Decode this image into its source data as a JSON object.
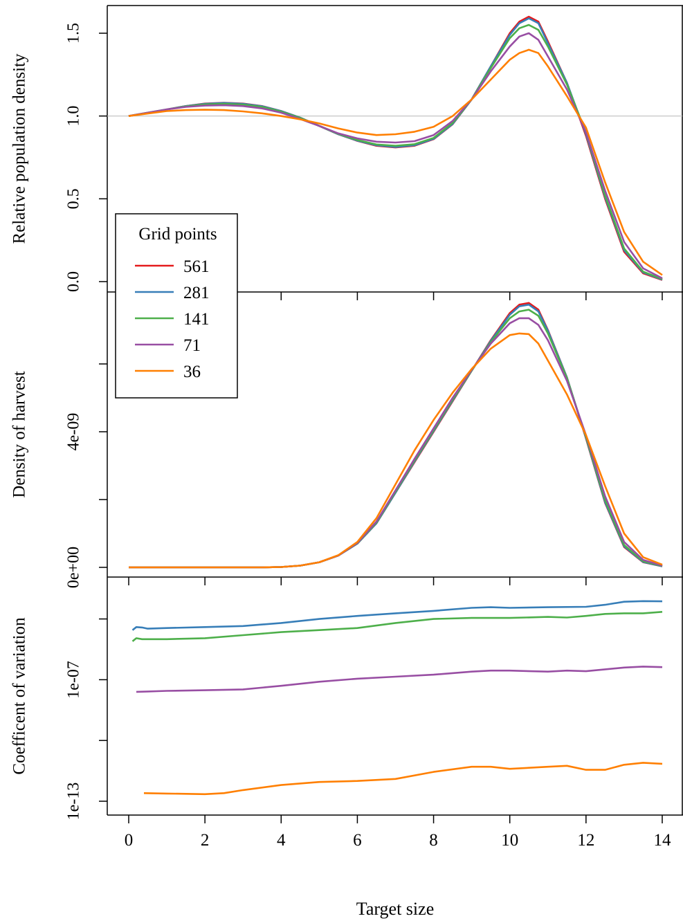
{
  "colors": {
    "561": "#e41a1c",
    "281": "#377eb8",
    "141": "#4daf4a",
    "71": "#984ea3",
    "36": "#ff7f00",
    "reference_line": "#bebebe",
    "axis": "#000000"
  },
  "x_axis": {
    "label": "Target size",
    "ticks": [
      0,
      2,
      4,
      6,
      8,
      10,
      12,
      14
    ],
    "tick_labels": [
      "0",
      "2",
      "4",
      "6",
      "8",
      "10",
      "12",
      "14"
    ],
    "range": [
      0,
      14
    ]
  },
  "legend": {
    "title": "Grid points",
    "placement": "left, spanning top and middle panels",
    "entries": [
      {
        "label": "561",
        "color": "#e41a1c"
      },
      {
        "label": "281",
        "color": "#377eb8"
      },
      {
        "label": "141",
        "color": "#4daf4a"
      },
      {
        "label": "71",
        "color": "#984ea3"
      },
      {
        "label": "36",
        "color": "#ff7f00"
      }
    ]
  },
  "chart_data": [
    {
      "type": "line",
      "ylabel": "Relative population density",
      "ylim": [
        0,
        1.6
      ],
      "yticks": [
        0.0,
        0.5,
        1.0,
        1.5
      ],
      "ytick_labels": [
        "0.0",
        "0.5",
        "1.0",
        "1.5"
      ],
      "reference_line_y": 1.0,
      "x": [
        0,
        0.5,
        1,
        1.5,
        2,
        2.5,
        3,
        3.5,
        4,
        4.5,
        5,
        5.5,
        6,
        6.5,
        7,
        7.5,
        8,
        8.5,
        9,
        9.5,
        10,
        10.25,
        10.5,
        10.75,
        11,
        11.5,
        12,
        12.5,
        13,
        13.5,
        14
      ],
      "series": [
        {
          "name": "561",
          "values": [
            1.0,
            1.02,
            1.04,
            1.06,
            1.075,
            1.08,
            1.075,
            1.06,
            1.03,
            0.99,
            0.94,
            0.89,
            0.85,
            0.82,
            0.81,
            0.82,
            0.86,
            0.95,
            1.1,
            1.3,
            1.5,
            1.57,
            1.6,
            1.57,
            1.45,
            1.2,
            0.88,
            0.5,
            0.18,
            0.05,
            0.01
          ]
        },
        {
          "name": "281",
          "values": [
            1.0,
            1.02,
            1.04,
            1.06,
            1.074,
            1.079,
            1.074,
            1.059,
            1.03,
            0.99,
            0.94,
            0.89,
            0.851,
            0.823,
            0.813,
            0.823,
            0.862,
            0.952,
            1.1,
            1.3,
            1.49,
            1.56,
            1.59,
            1.56,
            1.44,
            1.2,
            0.89,
            0.51,
            0.19,
            0.055,
            0.012
          ]
        },
        {
          "name": "141",
          "values": [
            1.0,
            1.02,
            1.04,
            1.058,
            1.07,
            1.074,
            1.069,
            1.055,
            1.027,
            0.988,
            0.94,
            0.892,
            0.855,
            0.828,
            0.82,
            0.83,
            0.868,
            0.958,
            1.1,
            1.29,
            1.47,
            1.53,
            1.55,
            1.52,
            1.42,
            1.19,
            0.9,
            0.52,
            0.2,
            0.06,
            0.015
          ]
        },
        {
          "name": "71",
          "values": [
            1.0,
            1.02,
            1.04,
            1.055,
            1.063,
            1.065,
            1.06,
            1.046,
            1.02,
            0.982,
            0.94,
            0.895,
            0.865,
            0.845,
            0.84,
            0.848,
            0.885,
            0.97,
            1.1,
            1.27,
            1.42,
            1.48,
            1.5,
            1.46,
            1.36,
            1.16,
            0.9,
            0.55,
            0.24,
            0.08,
            0.02
          ]
        },
        {
          "name": "36",
          "values": [
            1.0,
            1.015,
            1.03,
            1.036,
            1.038,
            1.036,
            1.028,
            1.016,
            1.0,
            0.98,
            0.955,
            0.925,
            0.9,
            0.885,
            0.89,
            0.905,
            0.935,
            1.0,
            1.1,
            1.22,
            1.34,
            1.38,
            1.4,
            1.38,
            1.3,
            1.12,
            0.93,
            0.6,
            0.3,
            0.12,
            0.04
          ]
        }
      ]
    },
    {
      "type": "line",
      "ylabel": "Density of harvest",
      "ylim": [
        0,
        1.52e-08
      ],
      "yticks": [
        0,
        2e-09,
        4e-09,
        6e-09
      ],
      "ytick_labels": [
        "0e+00",
        "",
        "4e-09",
        ""
      ],
      "x": [
        0,
        0.5,
        1,
        1.5,
        2,
        2.5,
        3,
        3.5,
        4,
        4.5,
        5,
        5.5,
        6,
        6.5,
        7,
        7.5,
        8,
        8.5,
        9,
        9.5,
        10,
        10.25,
        10.5,
        10.75,
        11,
        11.5,
        12,
        12.5,
        13,
        13.5,
        14
      ],
      "series": [
        {
          "name": "561",
          "values": [
            0,
            0,
            0,
            0,
            0,
            0,
            0,
            0,
            1e-11,
            5e-11,
            1.5e-10,
            3.5e-10,
            7e-10,
            1.3e-09,
            2.2e-09,
            3.1e-09,
            4e-09,
            4.9e-09,
            5.8e-09,
            6.7e-09,
            7.5e-09,
            7.75e-09,
            7.8e-09,
            7.6e-09,
            7e-09,
            5.6e-09,
            3.8e-09,
            1.9e-09,
            6e-10,
            1.5e-10,
            3e-11
          ]
        },
        {
          "name": "281",
          "values": [
            0,
            0,
            0,
            0,
            0,
            0,
            0,
            0,
            1e-11,
            5e-11,
            1.5e-10,
            3.5e-10,
            7e-10,
            1.3e-09,
            2.2e-09,
            3.12e-09,
            4.02e-09,
            4.92e-09,
            5.8e-09,
            6.68e-09,
            7.45e-09,
            7.7e-09,
            7.75e-09,
            7.55e-09,
            6.98e-09,
            5.6e-09,
            3.82e-09,
            1.92e-09,
            6.2e-10,
            1.6e-10,
            3e-11
          ]
        },
        {
          "name": "141",
          "values": [
            0,
            0,
            0,
            0,
            0,
            0,
            0,
            0,
            1e-11,
            5e-11,
            1.5e-10,
            3.5e-10,
            7.1e-10,
            1.32e-09,
            2.23e-09,
            3.15e-09,
            4.05e-09,
            4.95e-09,
            5.8e-09,
            6.64e-09,
            7.35e-09,
            7.55e-09,
            7.6e-09,
            7.42e-09,
            6.9e-09,
            5.58e-09,
            3.85e-09,
            1.98e-09,
            6.6e-10,
            1.8e-10,
            4e-11
          ]
        },
        {
          "name": "71",
          "values": [
            0,
            0,
            0,
            0,
            0,
            0,
            0,
            0,
            1e-11,
            5e-11,
            1.5e-10,
            3.5e-10,
            7.2e-10,
            1.35e-09,
            2.27e-09,
            3.2e-09,
            4.1e-09,
            5e-09,
            5.82e-09,
            6.6e-09,
            7.2e-09,
            7.35e-09,
            7.35e-09,
            7.15e-09,
            6.7e-09,
            5.5e-09,
            3.9e-09,
            2.1e-09,
            7.5e-10,
            2.2e-10,
            5e-11
          ]
        },
        {
          "name": "36",
          "values": [
            0,
            0,
            0,
            0,
            0,
            0,
            0,
            0,
            1e-11,
            5e-11,
            1.5e-10,
            3.6e-10,
            7.5e-10,
            1.45e-09,
            2.45e-09,
            3.45e-09,
            4.35e-09,
            5.15e-09,
            5.85e-09,
            6.45e-09,
            6.85e-09,
            6.9e-09,
            6.88e-09,
            6.6e-09,
            6.1e-09,
            5.1e-09,
            3.9e-09,
            2.4e-09,
            1e-09,
            3e-10,
            8e-11
          ]
        }
      ]
    },
    {
      "type": "line",
      "ylabel": "Coefficent of variation",
      "yscale": "log",
      "ylim_log10": [
        -13.0,
        -3.1
      ],
      "yticks_log10": [
        -13,
        -10,
        -7,
        -4
      ],
      "ytick_labels": [
        "1e-13",
        "",
        "1e-07",
        ""
      ],
      "series": [
        {
          "name": "281",
          "x": [
            0.1,
            0.2,
            0.35,
            0.5,
            1,
            2,
            3,
            4,
            5,
            6,
            7,
            8,
            9,
            9.5,
            10,
            11,
            12,
            12.5,
            13,
            13.5,
            14
          ],
          "values_log10": [
            -4.55,
            -4.4,
            -4.42,
            -4.48,
            -4.45,
            -4.4,
            -4.35,
            -4.2,
            -4.0,
            -3.85,
            -3.72,
            -3.6,
            -3.45,
            -3.42,
            -3.45,
            -3.42,
            -3.4,
            -3.3,
            -3.15,
            -3.12,
            -3.13
          ]
        },
        {
          "name": "141",
          "x": [
            0.1,
            0.2,
            0.35,
            0.5,
            1,
            2,
            3,
            4,
            5,
            6,
            7,
            8,
            9,
            10,
            11,
            11.5,
            12,
            12.5,
            13,
            13.5,
            14
          ],
          "values_log10": [
            -5.1,
            -4.95,
            -5.0,
            -5.0,
            -5.0,
            -4.95,
            -4.8,
            -4.65,
            -4.55,
            -4.45,
            -4.2,
            -4.0,
            -3.95,
            -3.95,
            -3.9,
            -3.93,
            -3.85,
            -3.75,
            -3.72,
            -3.72,
            -3.65
          ]
        },
        {
          "name": "71",
          "x": [
            0.2,
            0.5,
            1,
            2,
            3,
            4,
            5,
            6,
            7,
            8,
            9,
            9.5,
            10,
            11,
            11.5,
            12,
            13,
            13.5,
            14
          ],
          "values_log10": [
            -7.6,
            -7.58,
            -7.55,
            -7.52,
            -7.48,
            -7.3,
            -7.1,
            -6.95,
            -6.85,
            -6.75,
            -6.6,
            -6.55,
            -6.55,
            -6.6,
            -6.55,
            -6.58,
            -6.4,
            -6.35,
            -6.38
          ]
        },
        {
          "name": "36",
          "x": [
            0.4,
            1,
            2,
            2.5,
            3,
            4,
            5,
            6,
            7,
            8,
            9,
            9.5,
            10,
            11,
            11.5,
            12,
            12.5,
            13,
            13.5,
            14
          ],
          "values_log10": [
            -12.6,
            -12.62,
            -12.65,
            -12.6,
            -12.45,
            -12.2,
            -12.05,
            -12.0,
            -11.9,
            -11.55,
            -11.3,
            -11.3,
            -11.4,
            -11.3,
            -11.25,
            -11.45,
            -11.45,
            -11.2,
            -11.1,
            -11.15
          ]
        }
      ]
    }
  ]
}
